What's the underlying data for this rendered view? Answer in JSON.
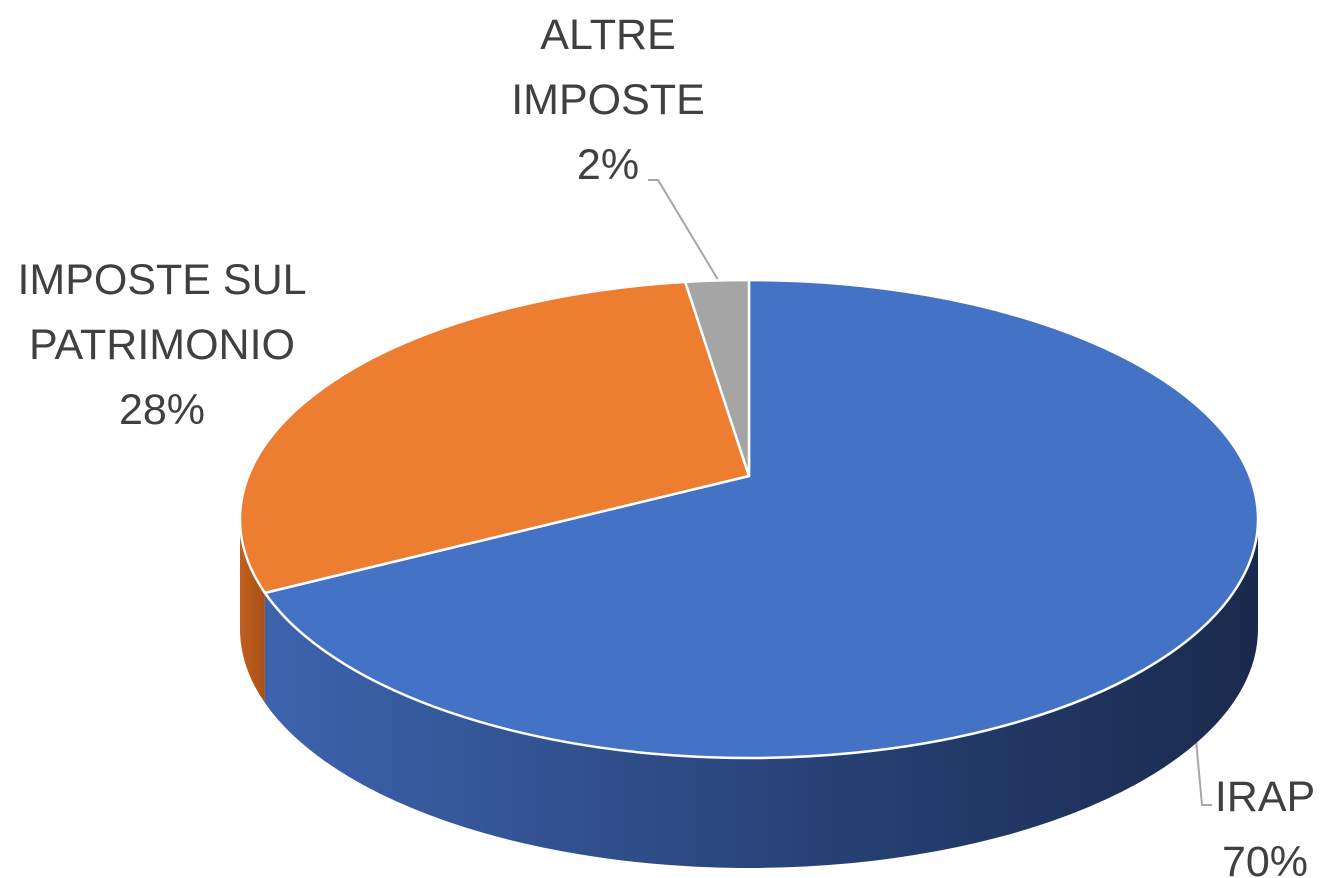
{
  "chart_data": {
    "type": "pie",
    "categories": [
      "IRAP",
      "IMPOSTE SUL PATRIMONIO",
      "ALTRE IMPOSTE"
    ],
    "values": [
      70,
      28,
      2
    ],
    "value_labels": [
      "70%",
      "28%",
      "2%"
    ],
    "colors": [
      "#4472c4",
      "#ed7d31",
      "#a5a5a5"
    ]
  }
}
